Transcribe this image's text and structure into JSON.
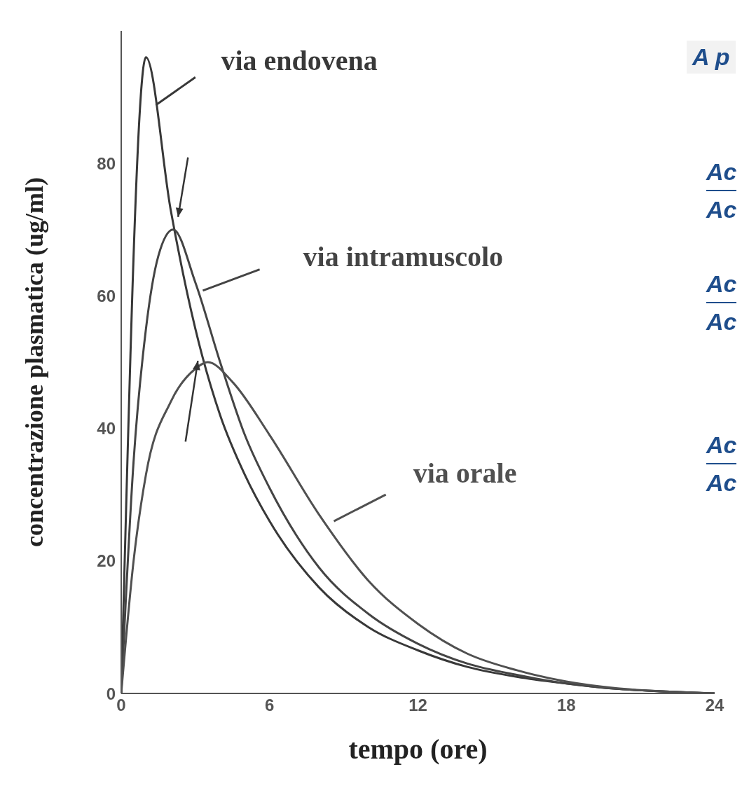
{
  "chart_data": {
    "type": "line",
    "xlabel": "tempo (ore)",
    "ylabel": "concentrazione plasmatica (ug/ml)",
    "xlim": [
      0,
      24
    ],
    "xticks": [
      0,
      6,
      12,
      18,
      24
    ],
    "ylim": [
      0,
      100
    ],
    "yticks": [
      0,
      20,
      40,
      60,
      80
    ],
    "grid": false,
    "legend": false,
    "marker": "none",
    "line_style": "solid",
    "series": [
      {
        "name": "via endovena",
        "color": "#383838",
        "x": [
          0,
          1,
          2,
          3,
          4,
          5,
          6,
          8,
          10,
          12,
          14,
          16,
          18,
          20,
          22,
          24
        ],
        "values": [
          0,
          96,
          73,
          55,
          42,
          33,
          26,
          16,
          10,
          6.5,
          4,
          2.5,
          1.5,
          0.7,
          0.3,
          0
        ]
      },
      {
        "name": "via intramuscolo",
        "color": "#444444",
        "x": [
          0,
          0.5,
          1,
          1.5,
          2.1,
          3,
          4,
          5,
          6,
          8,
          10,
          12,
          14,
          16,
          18,
          20,
          22,
          24
        ],
        "values": [
          0,
          35,
          55,
          66,
          70,
          62,
          50,
          39,
          31,
          19,
          12,
          7.5,
          4.5,
          2.8,
          1.5,
          0.7,
          0.3,
          0
        ]
      },
      {
        "name": "via orale",
        "color": "#505050",
        "x": [
          0,
          0.5,
          1,
          2,
          3,
          3.5,
          4.5,
          6,
          8,
          10,
          12,
          14,
          16,
          18,
          20,
          22,
          24
        ],
        "values": [
          0,
          20,
          33,
          44,
          49,
          50,
          47,
          39,
          27,
          17,
          10.5,
          6,
          3.5,
          1.8,
          0.8,
          0.3,
          0
        ]
      }
    ],
    "annotations": [
      "A p",
      "Ac",
      "Ac",
      "Ac",
      "Ac",
      "Ac",
      "Ac"
    ]
  }
}
